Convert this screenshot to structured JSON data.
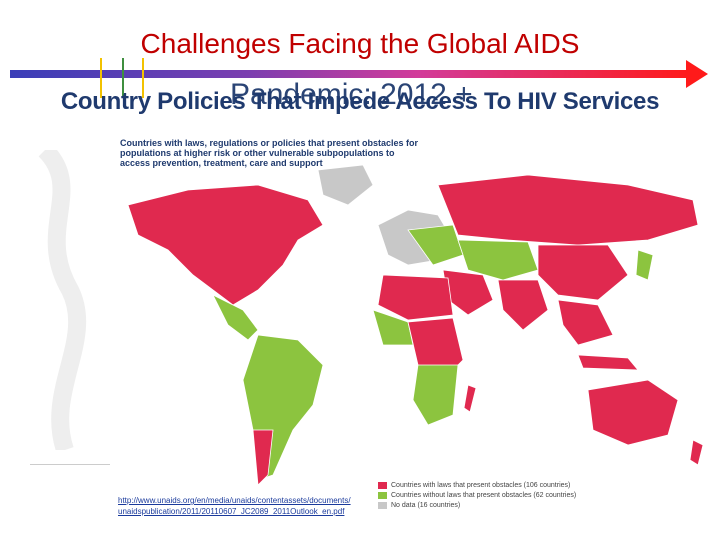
{
  "slide": {
    "title_line1": "Challenges Facing the Global AIDS",
    "title_line1b": "Pandemic: 2012 +",
    "title_line2": "Country Policies That Impede Access To HIV Services"
  },
  "map": {
    "heading": "Countries with laws, regulations or policies that present obstacles for populations at higher risk or other vulnerable subpopulations to access prevention, treatment, care and support",
    "legend": [
      {
        "label": "Countries with laws that present obstacles (106 countries)",
        "color": "#e0294f"
      },
      {
        "label": "Countries without laws that present obstacles (62 countries)",
        "color": "#8cc43f"
      },
      {
        "label": "No data (16 countries)",
        "color": "#c8c8c8"
      }
    ]
  },
  "source": {
    "line1": "http://www.unaids.org/en/media/unaids/contentassets/documents/",
    "line2": "unaidspublication/2011/20110607_JC2089_2011Outlook_en.pdf"
  },
  "colors": {
    "obstacles": "#e0294f",
    "no_obstacles": "#8cc43f",
    "no_data": "#c8c8c8",
    "title_red": "#c00000",
    "title_navy": "#1f3a6e"
  }
}
